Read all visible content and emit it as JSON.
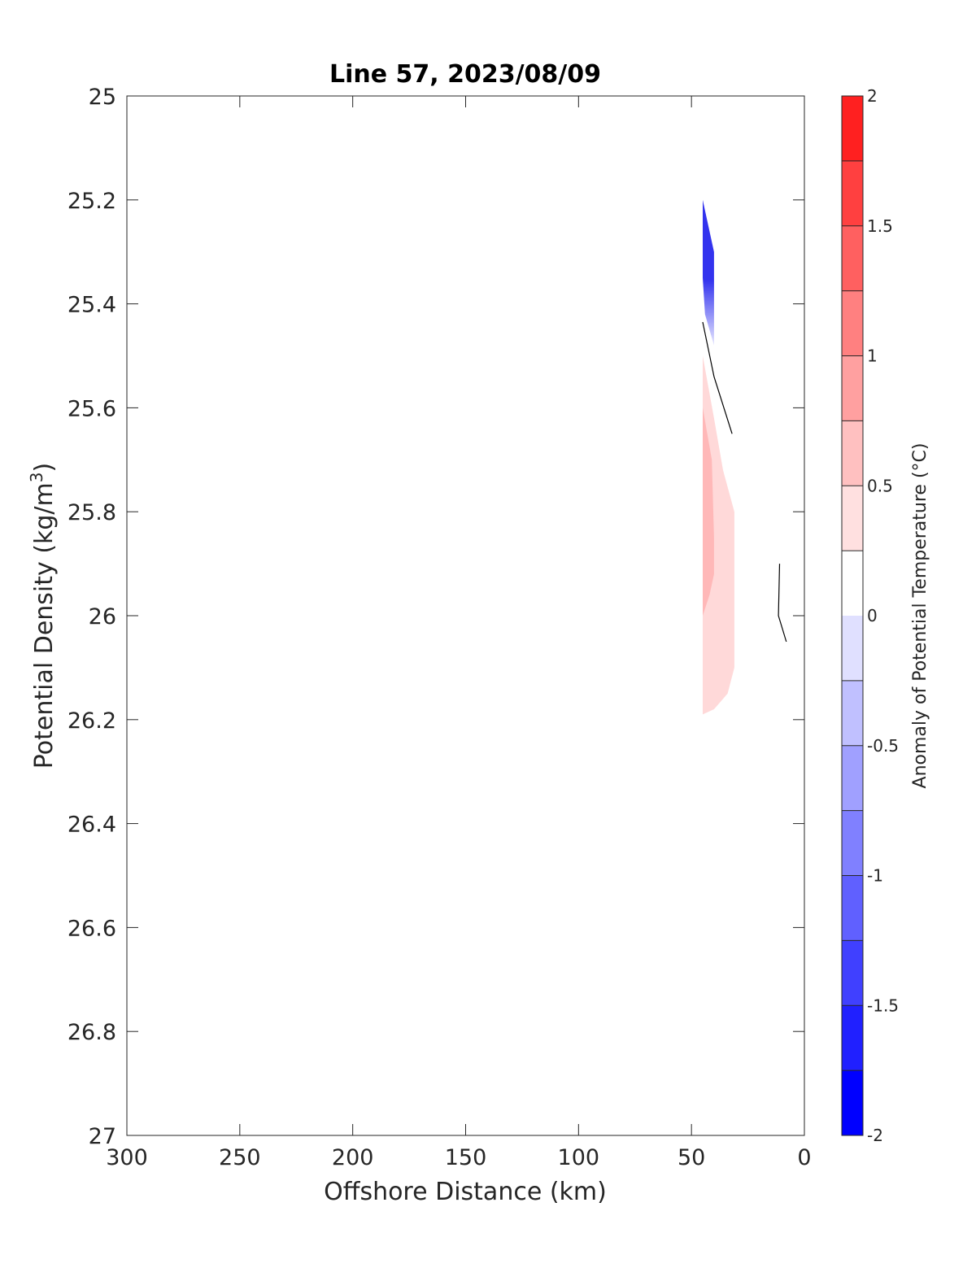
{
  "chart_data": {
    "type": "contour",
    "title": "Line 57, 2023/08/09",
    "xlabel": "Offshore Distance (km)",
    "ylabel_main": "Potential Density (kg/m",
    "ylabel_sup": "3",
    "ylabel_close": ")",
    "xlim": [
      300,
      0
    ],
    "ylim": [
      25,
      27
    ],
    "x_reversed": true,
    "y_reversed": true,
    "xticks": [
      300,
      250,
      200,
      150,
      100,
      50,
      0
    ],
    "xtick_labels": [
      "300",
      "250",
      "200",
      "150",
      "100",
      "50",
      "0"
    ],
    "yticks": [
      25,
      25.2,
      25.4,
      25.6,
      25.8,
      26,
      26.2,
      26.4,
      26.6,
      26.8,
      27
    ],
    "ytick_labels": [
      "25",
      "25.2",
      "25.4",
      "25.6",
      "25.8",
      "26",
      "26.2",
      "26.4",
      "26.6",
      "26.8",
      "27"
    ],
    "grid": false,
    "colorbar": {
      "label": "Anomaly of Potential Temperature (°C)",
      "range": [
        -2,
        2
      ],
      "levels": [
        -2,
        -1.75,
        -1.5,
        -1.25,
        -1,
        -0.75,
        -0.5,
        -0.25,
        0.25,
        0.5,
        0.75,
        1,
        1.25,
        1.5,
        1.75,
        2
      ],
      "ticks": [
        -2,
        -1.5,
        -1,
        -0.5,
        0,
        0.5,
        1,
        1.5,
        2
      ],
      "tick_labels": [
        "-2",
        "-1.5",
        "-1",
        "-0.5",
        "0",
        "0.5",
        "1",
        "1.5",
        "2"
      ],
      "bands": [
        {
          "from": -2,
          "to": -1.75,
          "color": "#0000ff"
        },
        {
          "from": -1.75,
          "to": -1.5,
          "color": "#2020ff"
        },
        {
          "from": -1.5,
          "to": -1.25,
          "color": "#4040ff"
        },
        {
          "from": -1.25,
          "to": -1,
          "color": "#6060ff"
        },
        {
          "from": -1,
          "to": -0.75,
          "color": "#8080ff"
        },
        {
          "from": -0.75,
          "to": -0.5,
          "color": "#a0a0ff"
        },
        {
          "from": -0.5,
          "to": -0.25,
          "color": "#c0c0ff"
        },
        {
          "from": -0.25,
          "to": 0,
          "color": "#e0e0ff"
        },
        {
          "from": 0,
          "to": 0.25,
          "color": "#ffffff"
        },
        {
          "from": 0.25,
          "to": 0.5,
          "color": "#ffe0e0"
        },
        {
          "from": 0.5,
          "to": 0.75,
          "color": "#ffc0c0"
        },
        {
          "from": 0.75,
          "to": 1,
          "color": "#ffa0a0"
        },
        {
          "from": 1,
          "to": 1.25,
          "color": "#ff8080"
        },
        {
          "from": 1.25,
          "to": 1.5,
          "color": "#ff6060"
        },
        {
          "from": 1.5,
          "to": 1.75,
          "color": "#ff4040"
        },
        {
          "from": 1.75,
          "to": 2,
          "color": "#ff2020"
        }
      ]
    },
    "filled_regions": [
      {
        "name": "cold-anomaly",
        "color": "#3333ee",
        "fade_to": "#e6e6ff",
        "points": [
          [
            45,
            25.2
          ],
          [
            40,
            25.3
          ],
          [
            40,
            25.48
          ],
          [
            44,
            25.42
          ],
          [
            45,
            25.35
          ]
        ]
      },
      {
        "name": "warm-anomaly-outer",
        "color": "#ffd9d9",
        "points": [
          [
            45,
            25.5
          ],
          [
            40,
            25.62
          ],
          [
            36,
            25.72
          ],
          [
            31,
            25.8
          ],
          [
            31,
            26.1
          ],
          [
            34,
            26.15
          ],
          [
            40,
            26.18
          ],
          [
            45,
            26.19
          ]
        ]
      },
      {
        "name": "warm-anomaly-inner",
        "color": "#ffb8b8",
        "points": [
          [
            45,
            25.6
          ],
          [
            41,
            25.7
          ],
          [
            40,
            25.85
          ],
          [
            40,
            25.92
          ],
          [
            42,
            25.96
          ],
          [
            45,
            26.0
          ]
        ]
      }
    ],
    "contour_lines": [
      {
        "name": "zero-contour-upper",
        "points": [
          [
            45,
            25.435
          ],
          [
            40,
            25.54
          ],
          [
            32,
            25.65
          ]
        ]
      },
      {
        "name": "zero-contour-lower",
        "points": [
          [
            11,
            25.9
          ],
          [
            11.5,
            26.0
          ],
          [
            8,
            26.05
          ]
        ]
      }
    ]
  }
}
